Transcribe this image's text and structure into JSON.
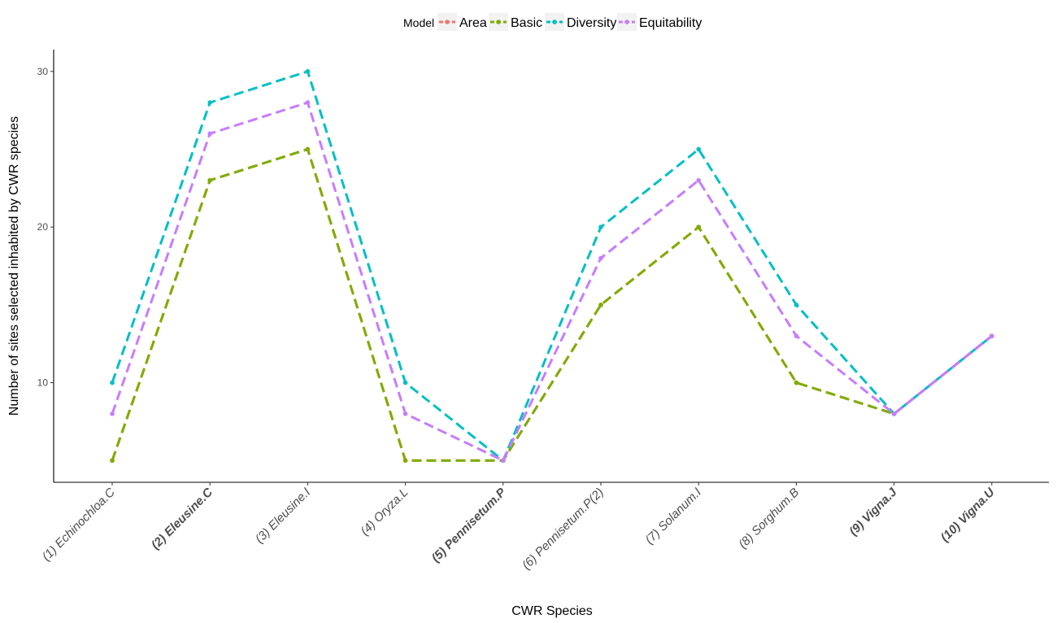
{
  "chart_data": {
    "type": "line",
    "xlabel": "CWR Species",
    "ylabel": "Number of sites selected inhabited by CWR species",
    "ylim": [
      3.6,
      31.4
    ],
    "yticks": [
      10,
      20,
      30
    ],
    "grid": false,
    "legend": {
      "title": "Model",
      "placement": "top"
    },
    "categories": [
      "(1) Echinochloa.C",
      "(2) Eleusine.C",
      "(3) Eleusine.I",
      "(4) Oryza.L",
      "(5) Pennisetum.P",
      "(6) Pennisetum.P(2)",
      "(7) Solanum.I",
      "(8) Sorghum.B",
      "(9) Vigna.J",
      "(10) Vigna.U"
    ],
    "bold_categories": [
      1,
      4,
      8,
      9
    ],
    "series": [
      {
        "name": "Area",
        "color": "#F8766D",
        "values": [
          5,
          23,
          25,
          5,
          5,
          15,
          20,
          10,
          8,
          13
        ]
      },
      {
        "name": "Basic",
        "color": "#7CAE00",
        "values": [
          5,
          23,
          25,
          5,
          5,
          15,
          20,
          10,
          8,
          13
        ]
      },
      {
        "name": "Diversity",
        "color": "#00BFC4",
        "values": [
          10,
          28,
          30,
          10,
          5,
          20,
          25,
          15,
          8,
          13
        ]
      },
      {
        "name": "Equitability",
        "color": "#C77CFF",
        "values": [
          8,
          26,
          28,
          8,
          5,
          18,
          23,
          13,
          8,
          13
        ]
      }
    ]
  }
}
